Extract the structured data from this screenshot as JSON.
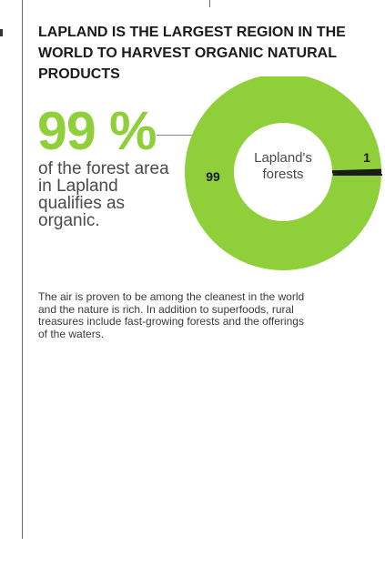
{
  "headline": "LAPLAND IS THE LARGEST REGION IN THE WORLD TO HARVEST ORGANIC NATURAL PRODUCTS",
  "big_stat": {
    "value": "99 %",
    "description": "of the forest area in Lapland qualifies as organic."
  },
  "body_text": "The air is proven to be among the cleanest in the world and the nature is rich. In addition to superfoods, rural treasures include fast-growing forests and the offerings of the waters.",
  "colors": {
    "green": "#8fcf3a",
    "dark": "#1a1a1a"
  },
  "chart_data": {
    "type": "pie",
    "title": "",
    "center_label": "Lapland's forests",
    "slices": [
      {
        "label": "99",
        "value": 99,
        "color": "#8fcf3a"
      },
      {
        "label": "1",
        "value": 1,
        "color": "#1a1a1a"
      }
    ]
  }
}
